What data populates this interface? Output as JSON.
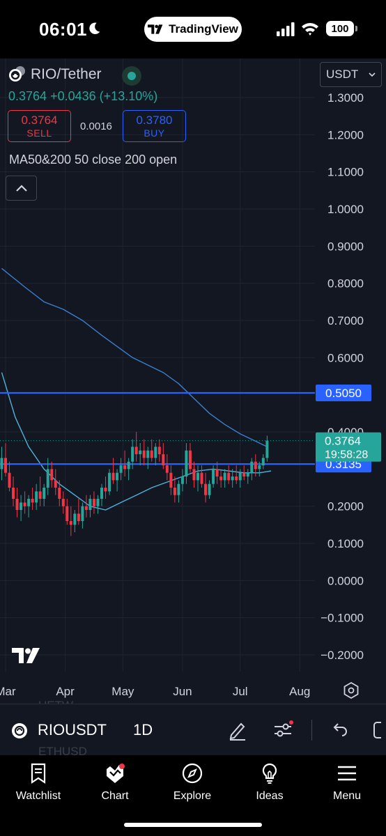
{
  "status_bar": {
    "time": "06:01",
    "app_pill": "TradingView",
    "battery": "100"
  },
  "header": {
    "symbol": "RIO/Tether",
    "price": "0.3764",
    "change": "+0.0436",
    "change_pct": "(+13.10%)",
    "sell_price": "0.3764",
    "sell_label": "SELL",
    "spread": "0.0016",
    "buy_price": "0.3780",
    "buy_label": "BUY",
    "indicator": "MA50&200 50 close 200 open",
    "currency": "USDT"
  },
  "colors": {
    "background": "#131722",
    "up": "#26a69a",
    "down": "#f23645",
    "blue_line": "#2962ff",
    "ma_fast": "#4fb3d9",
    "ma_slow": "#3b7fd1"
  },
  "chart_data": {
    "type": "candlestick",
    "y_axis_labels": [
      "1.3000",
      "1.2000",
      "1.1000",
      "1.0000",
      "0.9000",
      "0.8000",
      "0.7000",
      "0.6000",
      "0.4000",
      "0.2000",
      "0.1000",
      "0.0000",
      "−0.1000",
      "−0.2000"
    ],
    "y_axis_values": [
      1.3,
      1.2,
      1.1,
      1.0,
      0.9,
      0.8,
      0.7,
      0.6,
      0.4,
      0.2,
      0.1,
      0.0,
      -0.1,
      -0.2
    ],
    "x_axis_labels": [
      "Mar",
      "Apr",
      "May",
      "Jun",
      "Jul",
      "Aug"
    ],
    "x_axis_positions": [
      0,
      31,
      61,
      92,
      122,
      153
    ],
    "ylim": [
      -0.2,
      1.3
    ],
    "horizontal_lines": [
      {
        "value": 0.505,
        "label": "0.5050"
      },
      {
        "value": 0.3135,
        "label": "0.3135"
      }
    ],
    "last_price": {
      "value": 0.3764,
      "label": "0.3764",
      "countdown": "19:58:28"
    },
    "ma50": [
      [
        -2,
        0.56
      ],
      [
        5,
        0.44
      ],
      [
        12,
        0.36
      ],
      [
        20,
        0.3
      ],
      [
        28,
        0.26
      ],
      [
        36,
        0.23
      ],
      [
        44,
        0.2
      ],
      [
        52,
        0.19
      ],
      [
        60,
        0.21
      ],
      [
        68,
        0.23
      ],
      [
        76,
        0.25
      ],
      [
        84,
        0.265
      ],
      [
        92,
        0.28
      ],
      [
        100,
        0.295
      ],
      [
        108,
        0.3
      ],
      [
        116,
        0.295
      ],
      [
        124,
        0.29
      ],
      [
        132,
        0.29
      ],
      [
        138,
        0.295
      ]
    ],
    "ma200": [
      [
        -2,
        0.84
      ],
      [
        10,
        0.79
      ],
      [
        20,
        0.75
      ],
      [
        30,
        0.73
      ],
      [
        40,
        0.7
      ],
      [
        50,
        0.66
      ],
      [
        58,
        0.63
      ],
      [
        66,
        0.6
      ],
      [
        74,
        0.58
      ],
      [
        82,
        0.56
      ],
      [
        90,
        0.53
      ],
      [
        98,
        0.49
      ],
      [
        106,
        0.45
      ],
      [
        114,
        0.42
      ],
      [
        122,
        0.395
      ],
      [
        130,
        0.375
      ],
      [
        136,
        0.36
      ]
    ],
    "candles": [
      [
        -2,
        0.3,
        0.36,
        0.27,
        0.33
      ],
      [
        0,
        0.33,
        0.37,
        0.28,
        0.29
      ],
      [
        2,
        0.29,
        0.32,
        0.24,
        0.25
      ],
      [
        4,
        0.25,
        0.28,
        0.2,
        0.22
      ],
      [
        6,
        0.22,
        0.25,
        0.17,
        0.19
      ],
      [
        8,
        0.19,
        0.23,
        0.16,
        0.21
      ],
      [
        10,
        0.21,
        0.24,
        0.18,
        0.2
      ],
      [
        12,
        0.2,
        0.23,
        0.17,
        0.22
      ],
      [
        14,
        0.22,
        0.25,
        0.19,
        0.21
      ],
      [
        16,
        0.21,
        0.26,
        0.19,
        0.24
      ],
      [
        18,
        0.24,
        0.28,
        0.2,
        0.22
      ],
      [
        20,
        0.22,
        0.26,
        0.2,
        0.25
      ],
      [
        22,
        0.25,
        0.33,
        0.23,
        0.3
      ],
      [
        24,
        0.3,
        0.32,
        0.25,
        0.27
      ],
      [
        26,
        0.27,
        0.3,
        0.23,
        0.25
      ],
      [
        28,
        0.25,
        0.27,
        0.2,
        0.22
      ],
      [
        30,
        0.22,
        0.24,
        0.18,
        0.2
      ],
      [
        32,
        0.2,
        0.22,
        0.15,
        0.16
      ],
      [
        34,
        0.16,
        0.2,
        0.12,
        0.15
      ],
      [
        36,
        0.15,
        0.19,
        0.13,
        0.18
      ],
      [
        38,
        0.18,
        0.22,
        0.15,
        0.16
      ],
      [
        40,
        0.16,
        0.21,
        0.14,
        0.2
      ],
      [
        42,
        0.2,
        0.23,
        0.17,
        0.19
      ],
      [
        44,
        0.19,
        0.23,
        0.17,
        0.22
      ],
      [
        46,
        0.22,
        0.24,
        0.18,
        0.2
      ],
      [
        48,
        0.2,
        0.23,
        0.18,
        0.22
      ],
      [
        50,
        0.22,
        0.26,
        0.2,
        0.25
      ],
      [
        52,
        0.25,
        0.28,
        0.22,
        0.24
      ],
      [
        54,
        0.24,
        0.3,
        0.23,
        0.29
      ],
      [
        56,
        0.29,
        0.33,
        0.26,
        0.27
      ],
      [
        58,
        0.27,
        0.3,
        0.24,
        0.29
      ],
      [
        60,
        0.29,
        0.33,
        0.27,
        0.31
      ],
      [
        62,
        0.31,
        0.35,
        0.28,
        0.3
      ],
      [
        64,
        0.3,
        0.33,
        0.27,
        0.32
      ],
      [
        66,
        0.32,
        0.38,
        0.3,
        0.36
      ],
      [
        68,
        0.36,
        0.4,
        0.32,
        0.34
      ],
      [
        70,
        0.34,
        0.37,
        0.31,
        0.35
      ],
      [
        72,
        0.35,
        0.38,
        0.31,
        0.33
      ],
      [
        74,
        0.33,
        0.36,
        0.3,
        0.35
      ],
      [
        76,
        0.35,
        0.38,
        0.32,
        0.33
      ],
      [
        78,
        0.33,
        0.37,
        0.31,
        0.36
      ],
      [
        80,
        0.36,
        0.38,
        0.32,
        0.34
      ],
      [
        82,
        0.34,
        0.37,
        0.3,
        0.31
      ],
      [
        84,
        0.31,
        0.34,
        0.27,
        0.29
      ],
      [
        86,
        0.29,
        0.31,
        0.23,
        0.25
      ],
      [
        88,
        0.25,
        0.28,
        0.21,
        0.23
      ],
      [
        90,
        0.23,
        0.27,
        0.21,
        0.26
      ],
      [
        92,
        0.26,
        0.3,
        0.24,
        0.28
      ],
      [
        94,
        0.28,
        0.37,
        0.26,
        0.35
      ],
      [
        96,
        0.35,
        0.37,
        0.29,
        0.3
      ],
      [
        98,
        0.3,
        0.32,
        0.25,
        0.27
      ],
      [
        100,
        0.27,
        0.31,
        0.24,
        0.29
      ],
      [
        102,
        0.29,
        0.31,
        0.25,
        0.26
      ],
      [
        104,
        0.26,
        0.29,
        0.21,
        0.23
      ],
      [
        106,
        0.23,
        0.27,
        0.22,
        0.26
      ],
      [
        108,
        0.26,
        0.31,
        0.25,
        0.3
      ],
      [
        110,
        0.3,
        0.32,
        0.26,
        0.28
      ],
      [
        112,
        0.28,
        0.3,
        0.25,
        0.27
      ],
      [
        114,
        0.27,
        0.3,
        0.25,
        0.29
      ],
      [
        116,
        0.29,
        0.31,
        0.26,
        0.27
      ],
      [
        118,
        0.27,
        0.3,
        0.25,
        0.28
      ],
      [
        120,
        0.28,
        0.31,
        0.26,
        0.27
      ],
      [
        122,
        0.27,
        0.3,
        0.25,
        0.29
      ],
      [
        124,
        0.29,
        0.31,
        0.27,
        0.28
      ],
      [
        126,
        0.28,
        0.3,
        0.26,
        0.29
      ],
      [
        128,
        0.29,
        0.33,
        0.27,
        0.32
      ],
      [
        130,
        0.32,
        0.34,
        0.28,
        0.3
      ],
      [
        132,
        0.3,
        0.32,
        0.28,
        0.31
      ],
      [
        134,
        0.31,
        0.34,
        0.3,
        0.33
      ],
      [
        136,
        0.33,
        0.39,
        0.32,
        0.3764
      ]
    ]
  },
  "toolbar": {
    "symbol": "RIOUSDT",
    "interval": "1D",
    "ghost_top": "UETW",
    "ghost_bottom": "ETHUSD"
  },
  "nav": {
    "watchlist": "Watchlist",
    "chart": "Chart",
    "explore": "Explore",
    "ideas": "Ideas",
    "menu": "Menu"
  }
}
